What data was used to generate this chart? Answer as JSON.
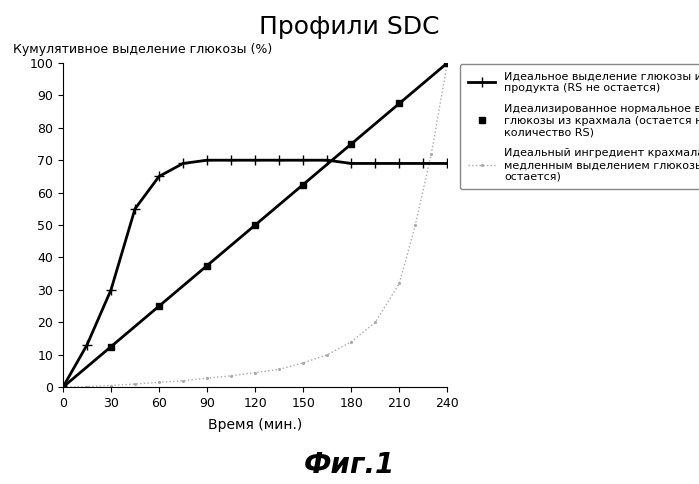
{
  "title": "Профили SDC",
  "ylabel": "Кумулятивное выделение глюкозы (%)",
  "xlabel": "Время (мин.)",
  "fig_caption": "Фиг.1",
  "xlim": [
    0,
    240
  ],
  "ylim": [
    0,
    100
  ],
  "xticks": [
    0,
    30,
    60,
    90,
    120,
    150,
    180,
    210,
    240
  ],
  "yticks": [
    0,
    10,
    20,
    30,
    40,
    50,
    60,
    70,
    80,
    90,
    100
  ],
  "curve1_x": [
    0,
    15,
    30,
    45,
    60,
    75,
    90,
    105,
    120,
    135,
    150,
    165,
    180,
    195,
    210,
    225,
    240
  ],
  "curve1_y": [
    0,
    13,
    30,
    55,
    65,
    69,
    70,
    70,
    70,
    70,
    70,
    70,
    69,
    69,
    69,
    69,
    69
  ],
  "curve1_color": "#000000",
  "curve1_lw": 2.0,
  "curve1_marker": "+",
  "curve1_markersize": 7,
  "curve1_label": "Идеальное выделение глюкозы из\nпродукта (RS не остается)",
  "curve2_x": [
    0,
    240
  ],
  "curve2_y": [
    0,
    100
  ],
  "curve2_color": "#000000",
  "curve2_lw": 2.0,
  "curve2_marker": "s",
  "curve2_markersize": 5,
  "curve2_markevery_x": [
    0,
    30,
    60,
    90,
    120,
    150,
    180,
    210,
    240
  ],
  "curve2_markevery_y": [
    0,
    12.5,
    25,
    37.5,
    50,
    62.5,
    75,
    87.5,
    100
  ],
  "curve2_label": "Идеализированное нормальное выделение\nглюкозы из крахмала (остается некоторое\nколичество RS)",
  "curve3_x": [
    0,
    15,
    30,
    45,
    60,
    75,
    90,
    105,
    120,
    135,
    150,
    165,
    180,
    195,
    210,
    220,
    230,
    240
  ],
  "curve3_y": [
    0,
    0.2,
    0.5,
    1.0,
    1.5,
    2.0,
    2.8,
    3.5,
    4.5,
    5.5,
    7.5,
    10,
    14,
    20,
    32,
    50,
    72,
    100
  ],
  "curve3_color": "#aaaaaa",
  "curve3_lw": 1.0,
  "curve3_marker": ".",
  "curve3_markersize": 2.5,
  "curve3_linestyle": ":",
  "curve3_label": "Идеальный ингредиент крахмала с\nмедленным выделением глюкозы (RS не\nостается)",
  "title_fontsize": 18,
  "ylabel_fontsize": 9,
  "xlabel_fontsize": 10,
  "caption_fontsize": 20,
  "tick_fontsize": 9,
  "legend_fontsize": 8,
  "background_color": "#ffffff"
}
